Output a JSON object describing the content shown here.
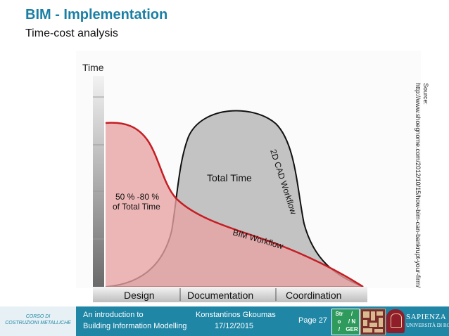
{
  "header": {
    "title": "BIM - Implementation",
    "subtitle": "Time-cost analysis"
  },
  "figure": {
    "y_axis_label": "Time",
    "total_time_label": "Total Time",
    "share_label_line1": "50 % -80 %",
    "share_label_line2": "of Total Time",
    "cad_curve_label": "2D CAD Workflow",
    "bim_curve_label": "BIM Workflow",
    "phases": [
      "Design",
      "Documentation",
      "Coordination"
    ],
    "source_line1": "Source:",
    "source_line2": "http://www.shoegnome.com/2012/10/15/how-bim-can-bankrupt-your-firm/"
  },
  "footer": {
    "course_line1": "CORSO DI",
    "course_line2": "COSTRUZIONI METALLICHE",
    "lecture_line1": "An introduction to",
    "lecture_line2": "Building Information Modelling",
    "author_name": "Konstantinos Gkoumas",
    "date": "17/12/2015",
    "page": "Page 27",
    "logo_str": [
      "Str",
      "/",
      "o",
      "/ N",
      "/",
      "GER"
    ],
    "university_name": "SAPIENZA",
    "university_subtitle": "UNIVERSITÀ DI ROMA"
  },
  "colors": {
    "title": "#1b7fa3",
    "footer_bar": "#1f86a6",
    "bim_curve": "#c41e24",
    "cad_area": "#b9b9b9",
    "bim_area": "#e9a3a3"
  }
}
